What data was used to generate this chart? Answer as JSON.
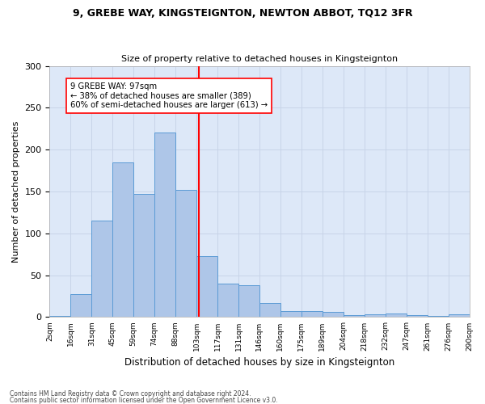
{
  "title1": "9, GREBE WAY, KINGSTEIGNTON, NEWTON ABBOT, TQ12 3FR",
  "title2": "Size of property relative to detached houses in Kingsteignton",
  "xlabel": "Distribution of detached houses by size in Kingsteignton",
  "ylabel": "Number of detached properties",
  "footer1": "Contains HM Land Registry data © Crown copyright and database right 2024.",
  "footer2": "Contains public sector information licensed under the Open Government Licence v3.0.",
  "bin_labels": [
    "2sqm",
    "16sqm",
    "31sqm",
    "45sqm",
    "59sqm",
    "74sqm",
    "88sqm",
    "103sqm",
    "117sqm",
    "131sqm",
    "146sqm",
    "160sqm",
    "175sqm",
    "189sqm",
    "204sqm",
    "218sqm",
    "232sqm",
    "247sqm",
    "261sqm",
    "276sqm",
    "290sqm"
  ],
  "bar_values": [
    1,
    27,
    115,
    185,
    147,
    220,
    152,
    73,
    40,
    38,
    17,
    7,
    7,
    6,
    2,
    3,
    4,
    2,
    1,
    3
  ],
  "bar_color": "#aec6e8",
  "bar_edge_color": "#5b9bd5",
  "grid_color": "#c8d4e8",
  "vline_color": "red",
  "annotation_title": "9 GREBE WAY: 97sqm",
  "annotation_line1": "← 38% of detached houses are smaller (389)",
  "annotation_line2": "60% of semi-detached houses are larger (613) →",
  "ylim": [
    0,
    300
  ],
  "yticks": [
    0,
    50,
    100,
    150,
    200,
    250,
    300
  ],
  "plot_bg_color": "#dde8f8",
  "fig_bg_color": "#ffffff"
}
